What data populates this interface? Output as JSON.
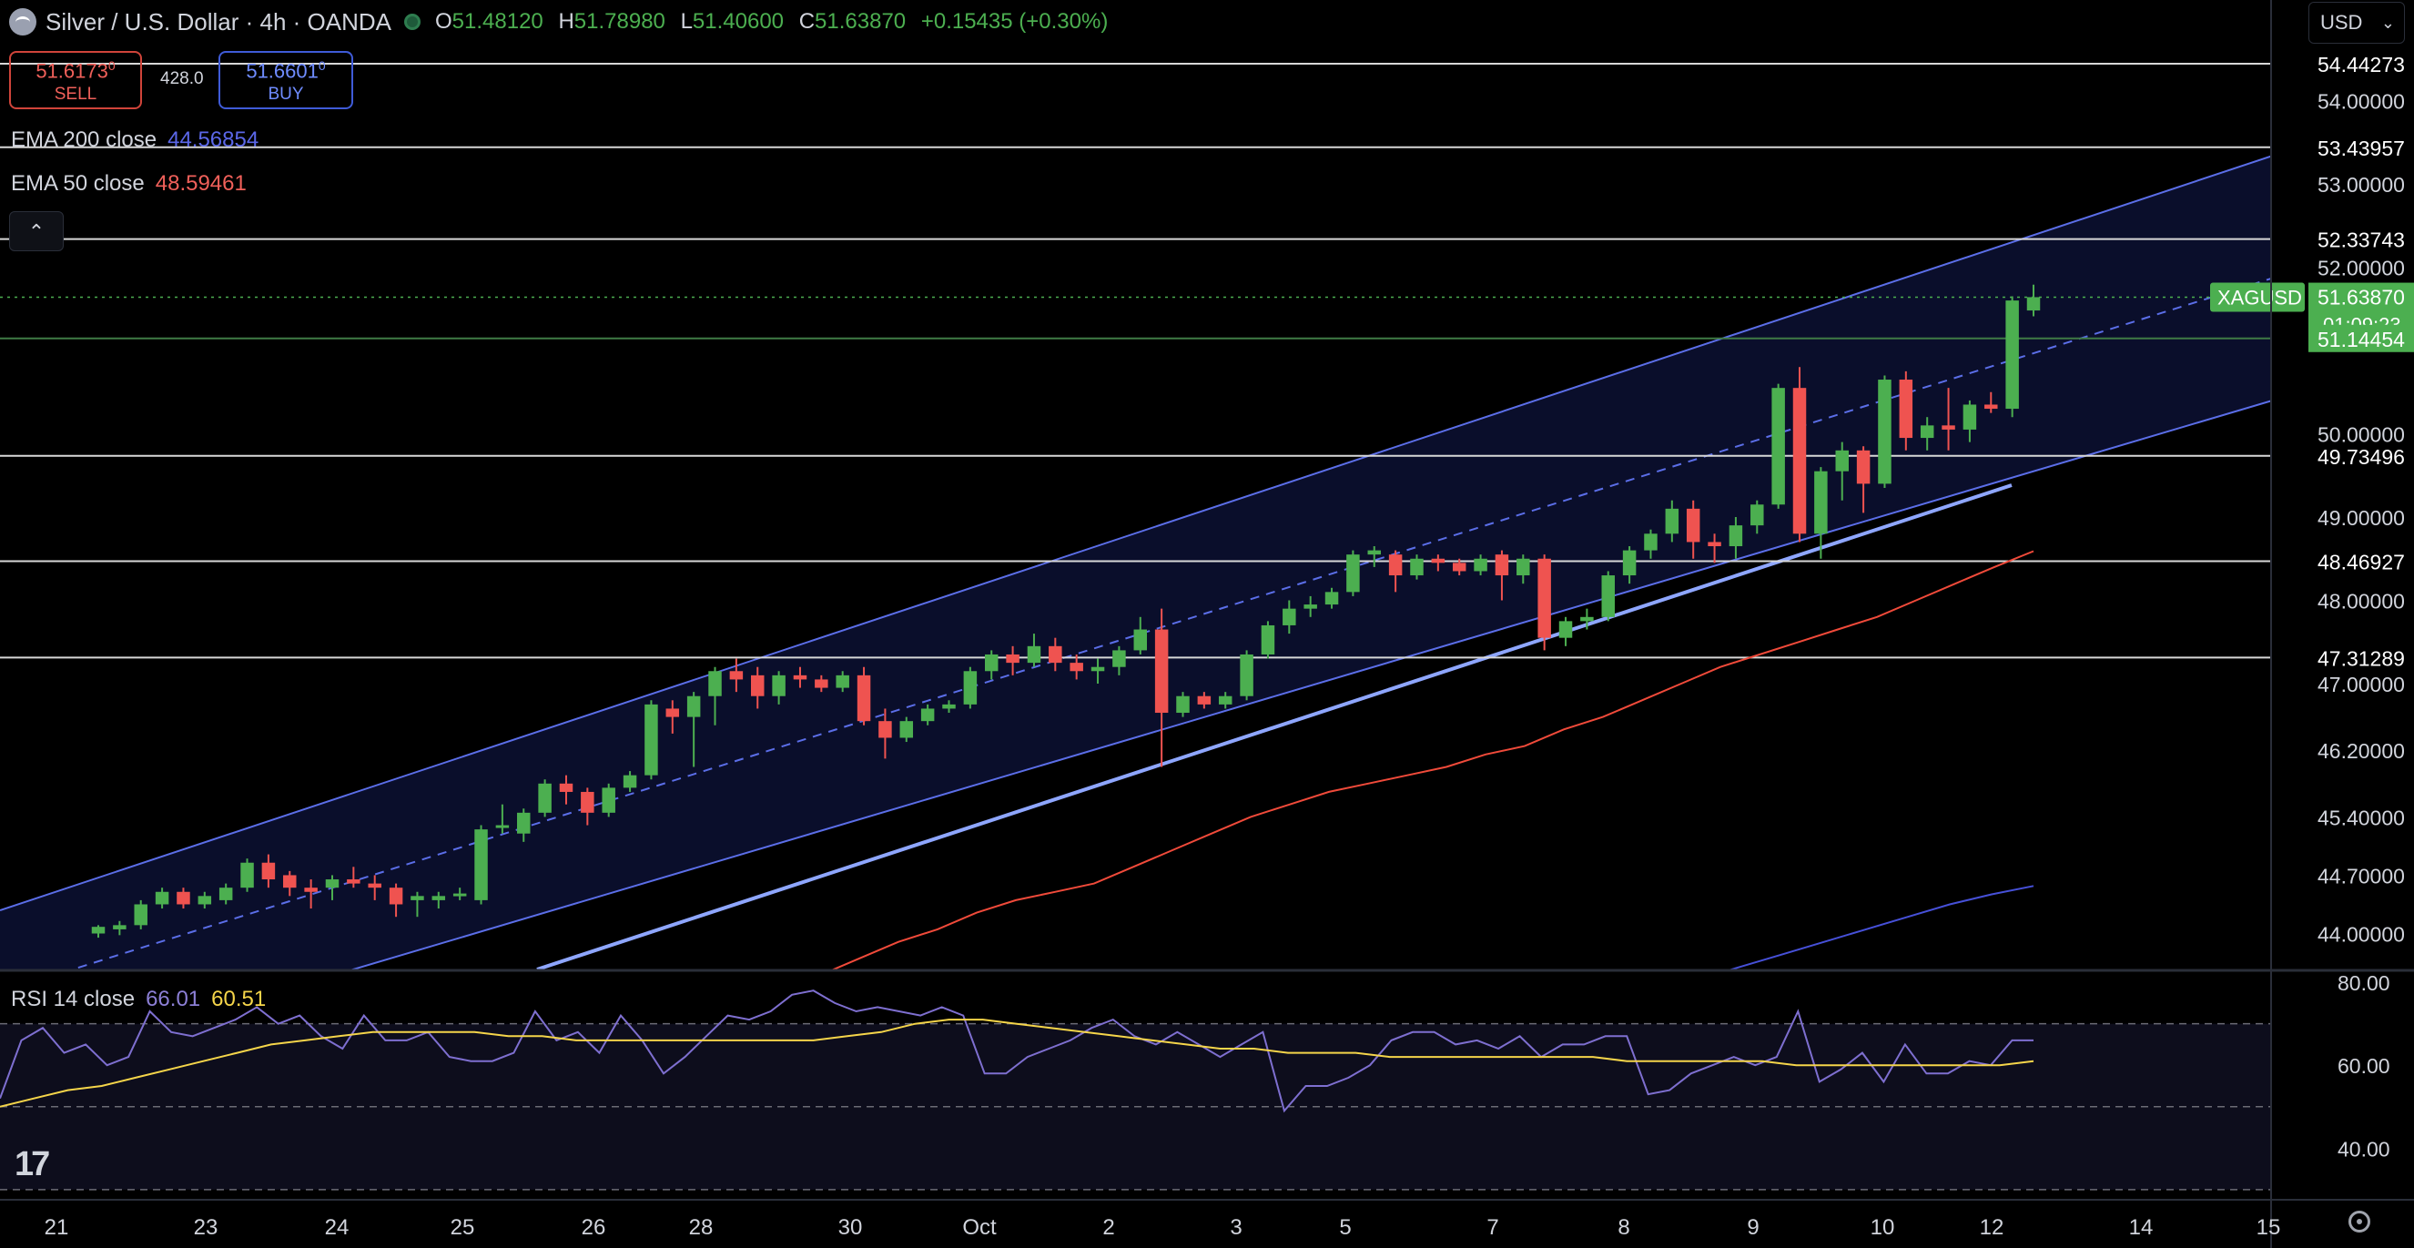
{
  "header": {
    "title": "Silver / U.S. Dollar · 4h · OANDA",
    "open_label": "O",
    "open": "51.48120",
    "high_label": "H",
    "high": "51.78980",
    "low_label": "L",
    "low": "51.40600",
    "close_label": "C",
    "close": "51.63870",
    "change": "+0.15435 (+0.30%)"
  },
  "trade": {
    "sell_price": "51.6173",
    "sell_sup": "0",
    "sell_label": "SELL",
    "buy_price": "51.6601",
    "buy_sup": "0",
    "buy_label": "BUY",
    "spread": "428.0"
  },
  "indicators": {
    "ema200_label": "EMA 200 close",
    "ema200_value": "44.56854",
    "ema50_label": "EMA 50 close",
    "ema50_value": "48.59461",
    "rsi_label": "RSI 14 close",
    "rsi_value": "66.01",
    "rsi_ma_value": "60.51"
  },
  "currency": "USD",
  "colors": {
    "up": "#4caf50",
    "down": "#ef5350",
    "channel": "#5b6ee8",
    "ema50": "#f04a3a",
    "ema200": "#4650d8",
    "rsi": "#7e6fd0",
    "rsi_ma": "#f5d54a",
    "price_tag": "#4caf50"
  },
  "icons": {
    "logo": "silver-coin-icon",
    "market": "market-status-dot-icon",
    "collapse": "chevron-up-icon",
    "settings": "gear-icon",
    "brand": "tradingview-logo-icon"
  },
  "chart_data": [
    {
      "type": "candlestick",
      "symbol": "XAGUSD",
      "timeframe": "4h",
      "ylim": [
        43.6,
        55.0
      ],
      "x_ticks": [
        "21",
        "23",
        "24",
        "25",
        "26",
        "28",
        "30",
        "Oct",
        "2",
        "3",
        "5",
        "7",
        "8",
        "9",
        "10",
        "12",
        "14",
        "15"
      ],
      "y_ticks": [
        "54.00000",
        "53.00000",
        "52.00000",
        "50.00000",
        "49.00000",
        "48.00000",
        "47.00000",
        "46.20000",
        "45.40000",
        "44.70000",
        "44.00000"
      ],
      "horizontal_levels": [
        "54.44273",
        "53.43957",
        "52.33743",
        "49.73496",
        "48.46927",
        "47.31289"
      ],
      "current_price": {
        "symbol": "XAGUSD",
        "price": "51.63870",
        "countdown": "01:09:23"
      },
      "green_level": "51.14454",
      "candles": [
        {
          "o": 44.0,
          "h": 44.1,
          "c": 44.08,
          "l": 43.95
        },
        {
          "o": 44.05,
          "h": 44.15,
          "c": 44.1,
          "l": 43.98
        },
        {
          "o": 44.1,
          "h": 44.4,
          "c": 44.35,
          "l": 44.05
        },
        {
          "o": 44.35,
          "h": 44.55,
          "c": 44.5,
          "l": 44.3
        },
        {
          "o": 44.5,
          "h": 44.55,
          "c": 44.35,
          "l": 44.3
        },
        {
          "o": 44.35,
          "h": 44.5,
          "c": 44.45,
          "l": 44.3
        },
        {
          "o": 44.4,
          "h": 44.6,
          "c": 44.55,
          "l": 44.35
        },
        {
          "o": 44.55,
          "h": 44.9,
          "c": 44.85,
          "l": 44.5
        },
        {
          "o": 44.85,
          "h": 44.95,
          "c": 44.65,
          "l": 44.55
        },
        {
          "o": 44.7,
          "h": 44.75,
          "c": 44.55,
          "l": 44.45
        },
        {
          "o": 44.55,
          "h": 44.65,
          "c": 44.5,
          "l": 44.3
        },
        {
          "o": 44.55,
          "h": 44.7,
          "c": 44.65,
          "l": 44.4
        },
        {
          "o": 44.65,
          "h": 44.8,
          "c": 44.6,
          "l": 44.55
        },
        {
          "o": 44.6,
          "h": 44.7,
          "c": 44.55,
          "l": 44.4
        },
        {
          "o": 44.55,
          "h": 44.6,
          "c": 44.35,
          "l": 44.2
        },
        {
          "o": 44.4,
          "h": 44.5,
          "c": 44.45,
          "l": 44.2
        },
        {
          "o": 44.4,
          "h": 44.5,
          "c": 44.45,
          "l": 44.3
        },
        {
          "o": 44.45,
          "h": 44.55,
          "c": 44.48,
          "l": 44.4
        },
        {
          "o": 44.4,
          "h": 45.3,
          "c": 45.25,
          "l": 44.35
        },
        {
          "o": 45.3,
          "h": 45.55,
          "c": 45.3,
          "l": 45.2
        },
        {
          "o": 45.2,
          "h": 45.5,
          "c": 45.45,
          "l": 45.1
        },
        {
          "o": 45.45,
          "h": 45.85,
          "c": 45.8,
          "l": 45.4
        },
        {
          "o": 45.8,
          "h": 45.9,
          "c": 45.7,
          "l": 45.55
        },
        {
          "o": 45.7,
          "h": 45.75,
          "c": 45.45,
          "l": 45.3
        },
        {
          "o": 45.45,
          "h": 45.8,
          "c": 45.75,
          "l": 45.4
        },
        {
          "o": 45.75,
          "h": 45.95,
          "c": 45.9,
          "l": 45.7
        },
        {
          "o": 45.9,
          "h": 46.8,
          "c": 46.75,
          "l": 45.85
        },
        {
          "o": 46.7,
          "h": 46.8,
          "c": 46.6,
          "l": 46.4
        },
        {
          "o": 46.6,
          "h": 46.9,
          "c": 46.85,
          "l": 46.0
        },
        {
          "o": 46.85,
          "h": 47.2,
          "c": 47.15,
          "l": 46.5
        },
        {
          "o": 47.15,
          "h": 47.3,
          "c": 47.05,
          "l": 46.9
        },
        {
          "o": 47.1,
          "h": 47.2,
          "c": 46.85,
          "l": 46.7
        },
        {
          "o": 46.85,
          "h": 47.15,
          "c": 47.1,
          "l": 46.75
        },
        {
          "o": 47.1,
          "h": 47.2,
          "c": 47.05,
          "l": 46.95
        },
        {
          "o": 47.05,
          "h": 47.1,
          "c": 46.95,
          "l": 46.9
        },
        {
          "o": 46.95,
          "h": 47.15,
          "c": 47.1,
          "l": 46.9
        },
        {
          "o": 47.1,
          "h": 47.2,
          "c": 46.55,
          "l": 46.5
        },
        {
          "o": 46.55,
          "h": 46.7,
          "c": 46.35,
          "l": 46.1
        },
        {
          "o": 46.35,
          "h": 46.6,
          "c": 46.55,
          "l": 46.3
        },
        {
          "o": 46.55,
          "h": 46.75,
          "c": 46.7,
          "l": 46.5
        },
        {
          "o": 46.7,
          "h": 46.8,
          "c": 46.75,
          "l": 46.65
        },
        {
          "o": 46.75,
          "h": 47.2,
          "c": 47.15,
          "l": 46.7
        },
        {
          "o": 47.15,
          "h": 47.4,
          "c": 47.35,
          "l": 47.05
        },
        {
          "o": 47.35,
          "h": 47.45,
          "c": 47.25,
          "l": 47.1
        },
        {
          "o": 47.25,
          "h": 47.6,
          "c": 47.45,
          "l": 47.2
        },
        {
          "o": 47.45,
          "h": 47.55,
          "c": 47.25,
          "l": 47.15
        },
        {
          "o": 47.25,
          "h": 47.35,
          "c": 47.15,
          "l": 47.05
        },
        {
          "o": 47.15,
          "h": 47.3,
          "c": 47.2,
          "l": 47.0
        },
        {
          "o": 47.2,
          "h": 47.45,
          "c": 47.4,
          "l": 47.1
        },
        {
          "o": 47.4,
          "h": 47.8,
          "c": 47.65,
          "l": 47.35
        },
        {
          "o": 47.65,
          "h": 47.9,
          "c": 46.65,
          "l": 46.0
        },
        {
          "o": 46.65,
          "h": 46.9,
          "c": 46.85,
          "l": 46.6
        },
        {
          "o": 46.85,
          "h": 46.9,
          "c": 46.75,
          "l": 46.7
        },
        {
          "o": 46.75,
          "h": 46.9,
          "c": 46.85,
          "l": 46.7
        },
        {
          "o": 46.85,
          "h": 47.4,
          "c": 47.35,
          "l": 46.8
        },
        {
          "o": 47.35,
          "h": 47.75,
          "c": 47.7,
          "l": 47.3
        },
        {
          "o": 47.7,
          "h": 48.0,
          "c": 47.9,
          "l": 47.6
        },
        {
          "o": 47.9,
          "h": 48.05,
          "c": 47.95,
          "l": 47.8
        },
        {
          "o": 47.95,
          "h": 48.15,
          "c": 48.1,
          "l": 47.9
        },
        {
          "o": 48.1,
          "h": 48.6,
          "c": 48.55,
          "l": 48.05
        },
        {
          "o": 48.55,
          "h": 48.65,
          "c": 48.6,
          "l": 48.4
        },
        {
          "o": 48.55,
          "h": 48.6,
          "c": 48.3,
          "l": 48.1
        },
        {
          "o": 48.3,
          "h": 48.55,
          "c": 48.5,
          "l": 48.25
        },
        {
          "o": 48.5,
          "h": 48.55,
          "c": 48.45,
          "l": 48.35
        },
        {
          "o": 48.45,
          "h": 48.5,
          "c": 48.35,
          "l": 48.3
        },
        {
          "o": 48.35,
          "h": 48.55,
          "c": 48.5,
          "l": 48.3
        },
        {
          "o": 48.55,
          "h": 48.6,
          "c": 48.3,
          "l": 48.0
        },
        {
          "o": 48.3,
          "h": 48.55,
          "c": 48.5,
          "l": 48.2
        },
        {
          "o": 48.5,
          "h": 48.55,
          "c": 47.55,
          "l": 47.4
        },
        {
          "o": 47.55,
          "h": 47.8,
          "c": 47.75,
          "l": 47.45
        },
        {
          "o": 47.75,
          "h": 47.9,
          "c": 47.8,
          "l": 47.65
        },
        {
          "o": 47.8,
          "h": 48.35,
          "c": 48.3,
          "l": 47.75
        },
        {
          "o": 48.3,
          "h": 48.65,
          "c": 48.6,
          "l": 48.2
        },
        {
          "o": 48.6,
          "h": 48.85,
          "c": 48.8,
          "l": 48.5
        },
        {
          "o": 48.8,
          "h": 49.2,
          "c": 49.1,
          "l": 48.7
        },
        {
          "o": 49.1,
          "h": 49.2,
          "c": 48.7,
          "l": 48.5
        },
        {
          "o": 48.7,
          "h": 48.8,
          "c": 48.65,
          "l": 48.45
        },
        {
          "o": 48.65,
          "h": 49.0,
          "c": 48.9,
          "l": 48.5
        },
        {
          "o": 48.9,
          "h": 49.2,
          "c": 49.15,
          "l": 48.8
        },
        {
          "o": 49.15,
          "h": 50.6,
          "c": 50.55,
          "l": 49.1
        },
        {
          "o": 50.55,
          "h": 50.8,
          "c": 48.8,
          "l": 48.7
        },
        {
          "o": 48.8,
          "h": 49.6,
          "c": 49.55,
          "l": 48.5
        },
        {
          "o": 49.55,
          "h": 49.9,
          "c": 49.8,
          "l": 49.2
        },
        {
          "o": 49.8,
          "h": 49.85,
          "c": 49.4,
          "l": 49.05
        },
        {
          "o": 49.4,
          "h": 50.7,
          "c": 50.65,
          "l": 49.35
        },
        {
          "o": 50.65,
          "h": 50.75,
          "c": 49.95,
          "l": 49.8
        },
        {
          "o": 49.95,
          "h": 50.2,
          "c": 50.1,
          "l": 49.8
        },
        {
          "o": 50.1,
          "h": 50.55,
          "c": 50.05,
          "l": 49.8
        },
        {
          "o": 50.05,
          "h": 50.4,
          "c": 50.35,
          "l": 49.9
        },
        {
          "o": 50.35,
          "h": 50.5,
          "c": 50.3,
          "l": 50.25
        },
        {
          "o": 50.3,
          "h": 51.65,
          "c": 51.6,
          "l": 50.2
        },
        {
          "o": 51.48,
          "h": 51.79,
          "c": 51.64,
          "l": 51.41
        }
      ],
      "ema50": [
        42.1,
        42.3,
        42.5,
        42.7,
        42.9,
        43.1,
        43.3,
        43.5,
        43.7,
        43.9,
        44.05,
        44.25,
        44.4,
        44.5,
        44.6,
        44.8,
        45.0,
        45.2,
        45.4,
        45.55,
        45.7,
        45.8,
        45.9,
        46.0,
        46.15,
        46.25,
        46.45,
        46.6,
        46.8,
        47.0,
        47.2,
        47.35,
        47.5,
        47.65,
        47.8,
        48.0,
        48.2,
        48.4,
        48.59
      ],
      "ema200": [
        43.3,
        43.45,
        43.6,
        43.75,
        43.9,
        44.05,
        44.2,
        44.35,
        44.47,
        44.57
      ],
      "rsi": [
        52,
        66,
        69,
        63,
        65,
        60,
        62,
        73,
        68,
        67,
        69,
        71,
        74,
        70,
        72,
        67,
        64,
        72,
        66,
        66,
        68,
        62,
        61,
        61,
        63,
        73,
        66,
        68,
        63,
        72,
        66,
        58,
        62,
        67,
        72,
        71,
        73,
        77,
        78,
        75,
        73,
        74,
        73,
        72,
        74,
        72,
        58,
        58,
        62,
        64,
        66,
        69,
        71,
        67,
        65,
        68,
        65,
        62,
        65,
        68,
        49,
        55,
        55,
        57,
        60,
        66,
        68,
        68,
        65,
        66,
        64,
        67,
        62,
        65,
        65,
        67,
        67,
        53,
        54,
        58,
        60,
        62,
        60,
        62,
        73,
        56,
        59,
        63,
        56,
        65,
        58,
        58,
        61,
        60,
        66,
        66
      ],
      "rsi_ma": [
        50,
        52,
        54,
        55,
        57,
        59,
        61,
        63,
        65,
        66,
        67,
        68,
        68,
        68,
        68,
        67,
        67,
        66,
        66,
        66,
        66,
        66,
        66,
        66,
        66,
        67,
        68,
        70,
        71,
        71,
        70,
        69,
        68,
        67,
        66,
        65,
        64,
        64,
        63,
        63,
        63,
        62,
        62,
        62,
        62,
        62,
        62,
        62,
        61,
        61,
        61,
        61,
        61,
        60,
        60,
        60,
        60,
        60,
        60,
        60,
        61
      ],
      "rsi_ylim": [
        28,
        82
      ],
      "rsi_y_ticks": [
        "80.00",
        "60.00",
        "40.00"
      ]
    }
  ]
}
